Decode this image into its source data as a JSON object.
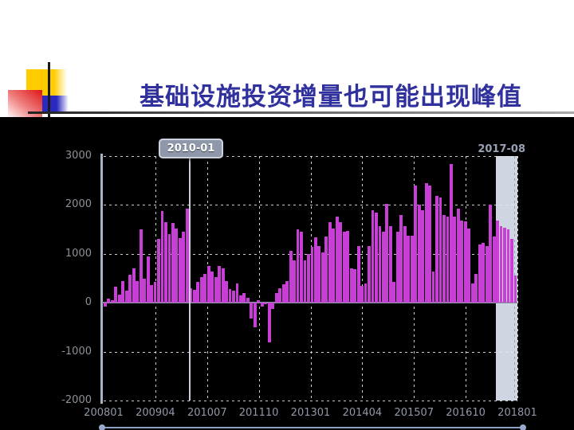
{
  "slide": {
    "title": "基础设施投资增量也可能出现峰值"
  },
  "colors": {
    "title": "#31319E",
    "bar": "#C83FD6",
    "chart_background": "#000000",
    "highlight_band": "#CFD5E1",
    "axis": "#A9B2C6",
    "grid": "#EDEDF4",
    "zero_line": "#8A92A2",
    "tick_label": "#9098A8",
    "tooltip_bg": "#8E98AA",
    "tooltip_border": "#CCD2DE",
    "tooltip_text": "#FFFFFF",
    "scrollbar": "#8CA0C2",
    "deco_yellow": "#FFCC00",
    "deco_red": "#DD1515",
    "deco_blue": "#2A2AC0"
  },
  "chart_data": {
    "type": "bar",
    "title": "",
    "x_start": "2008-01",
    "x_end": "2017-08",
    "frequency": "monthly",
    "ylim": [
      -2000,
      3000
    ],
    "y_ticks": [
      3000,
      2000,
      1000,
      0,
      -1000,
      -2000
    ],
    "x_tick_labels": [
      "200801",
      "200904",
      "201007",
      "201110",
      "201301",
      "201404",
      "201507",
      "201610",
      "201801"
    ],
    "grid": "dashed",
    "legend": "none",
    "marker_line": {
      "label": "2010-01",
      "at_month_index": 24
    },
    "highlight_band": {
      "label": "2017-08",
      "from_month_index": 110,
      "to_month_index": 115
    },
    "values": [
      -80,
      90,
      60,
      330,
      170,
      440,
      250,
      570,
      700,
      450,
      1500,
      490,
      950,
      370,
      420,
      1300,
      1870,
      1650,
      1400,
      1630,
      1520,
      1320,
      1450,
      1930,
      300,
      260,
      430,
      520,
      590,
      750,
      640,
      520,
      750,
      700,
      450,
      280,
      250,
      390,
      150,
      200,
      100,
      -330,
      -500,
      60,
      -80,
      -30,
      -820,
      -120,
      200,
      300,
      380,
      450,
      1060,
      870,
      1510,
      1450,
      870,
      1000,
      1140,
      1340,
      1160,
      1030,
      1350,
      1650,
      1520,
      1760,
      1650,
      1450,
      1470,
      700,
      680,
      1160,
      350,
      400,
      1160,
      1890,
      1850,
      1570,
      1450,
      2030,
      1570,
      430,
      1450,
      1800,
      1560,
      1370,
      1370,
      2400,
      2000,
      1890,
      2440,
      2400,
      640,
      2180,
      2150,
      1790,
      1770,
      2840,
      1770,
      1920,
      1680,
      1660,
      1520,
      390,
      590,
      1190,
      1220,
      1160,
      2000,
      1350,
      1680,
      1570,
      1540,
      1500,
      1300,
      560
    ]
  }
}
